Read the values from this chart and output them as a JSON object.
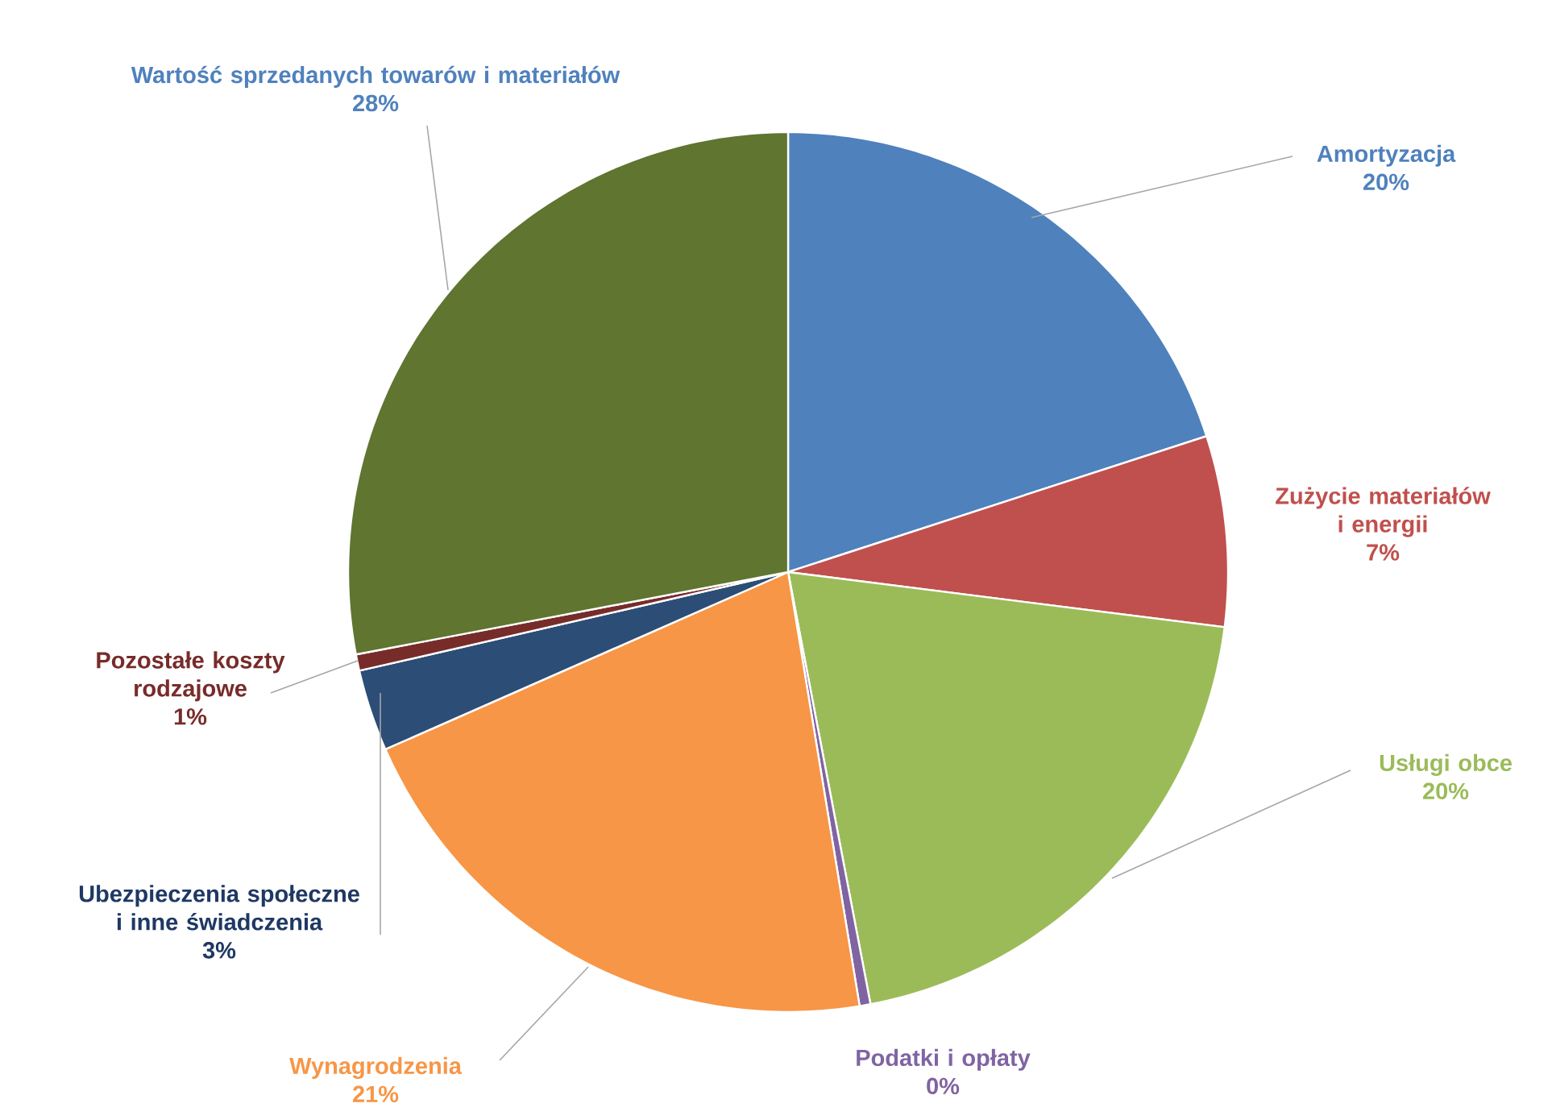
{
  "chart_data": {
    "type": "pie",
    "categories": [
      "Amortyzacja",
      "Zużycie materiałów i energii",
      "Usługi obce",
      "Podatki i opłaty",
      "Wynagrodzenia",
      "Ubezpieczenia społeczne i inne świadczenia",
      "Pozostałe koszty rodzajowe",
      "Wartość sprzedanych towarów i materiałów"
    ],
    "values": [
      20,
      7,
      20,
      0.4,
      21,
      3,
      0.6,
      28
    ],
    "value_labels": [
      "20%",
      "7%",
      "20%",
      "0%",
      "21%",
      "3%",
      "1%",
      "28%"
    ],
    "colors": [
      "#4f81bd",
      "#c0504d",
      "#9bbb59",
      "#8064a2",
      "#f79646",
      "#2c4d75",
      "#772c2a",
      "#5f7530"
    ]
  }
}
